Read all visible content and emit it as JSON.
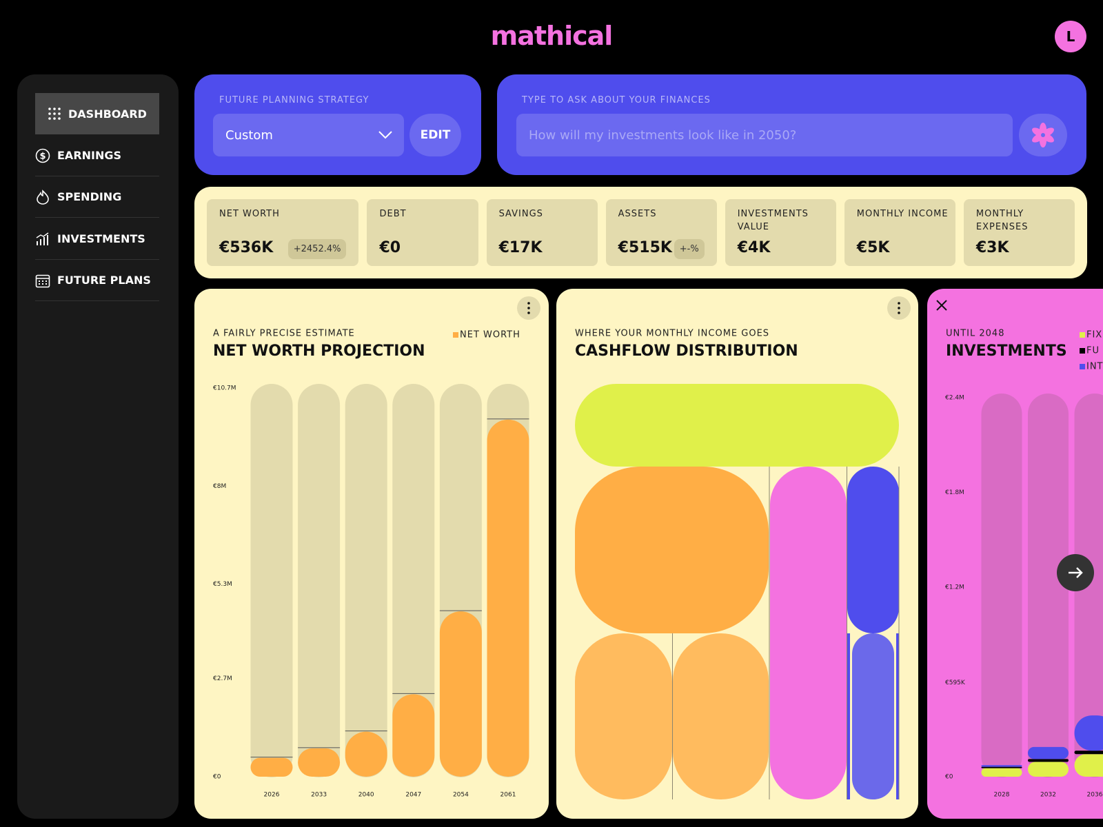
{
  "header": {
    "logo": "mathical",
    "avatar": "L"
  },
  "sidebar": {
    "items": [
      "DASHBOARD",
      "EARNINGS",
      "SPENDING",
      "INVESTMENTS",
      "FUTURE PLANS"
    ]
  },
  "strategy": {
    "label": "FUTURE PLANNING STRATEGY",
    "selected": "Custom",
    "button": "EDIT"
  },
  "ask": {
    "label": "TYPE TO ASK ABOUT YOUR FINANCES",
    "placeholder": "How will my investments look like in 2050?"
  },
  "stats": [
    {
      "label": "NET WORTH",
      "value": "€536K",
      "badge": "+2452.4%"
    },
    {
      "label": "DEBT",
      "value": "€0"
    },
    {
      "label": "SAVINGS",
      "value": "€17K"
    },
    {
      "label": "ASSETS",
      "value": "€515K",
      "badge": "+-%"
    },
    {
      "label": "INVESTMENTS VALUE",
      "value": "€4K"
    },
    {
      "label": "MONTHLY INCOME",
      "value": "€5K"
    },
    {
      "label": "MONTHLY EXPENSES",
      "value": "€3K"
    }
  ],
  "cashflow_card": {
    "subtitle": "WHERE YOUR MONTHLY INCOME GOES",
    "title": "CASHFLOW DISTRIBUTION"
  },
  "chart_data": [
    {
      "type": "bar",
      "subtitle": "A FAIRLY PRECISE ESTIMATE",
      "title": "NET WORTH PROJECTION",
      "categories": [
        "2026",
        "2033",
        "2040",
        "2047",
        "2054",
        "2061"
      ],
      "series": [
        {
          "name": "NET WORTH",
          "color": "#ffae45",
          "values": [
            520000,
            780000,
            1240000,
            2270000,
            4550000,
            9830000
          ]
        }
      ],
      "ylim": [
        0,
        10700000
      ],
      "yticks": [
        {
          "value": 0,
          "label": "€0"
        },
        {
          "value": 2700000,
          "label": "€2.7M"
        },
        {
          "value": 5300000,
          "label": "€5.3M"
        },
        {
          "value": 8000000,
          "label": "€8M"
        },
        {
          "value": 10700000,
          "label": "€10.7M"
        }
      ]
    },
    {
      "type": "stacked_bar",
      "subtitle": "UNTIL 2048",
      "title": "INVESTMENTS",
      "categories": [
        "2028",
        "2032",
        "2036"
      ],
      "series": [
        {
          "name": "FIX",
          "color": "#e0f04a",
          "values": [
            54000,
            94000,
            143000
          ]
        },
        {
          "name": "FU",
          "color": "#000000",
          "values": [
            9000,
            18000,
            22000
          ]
        },
        {
          "name": "INT",
          "color": "#4f4ded",
          "values": [
            10000,
            76000,
            223000
          ]
        }
      ],
      "ylim": [
        0,
        2400000
      ],
      "yticks": [
        {
          "value": 0,
          "label": "€0"
        },
        {
          "value": 595000,
          "label": "€595K"
        },
        {
          "value": 1200000,
          "label": "€1.2M"
        },
        {
          "value": 1800000,
          "label": "€1.8M"
        },
        {
          "value": 2400000,
          "label": "€2.4M"
        }
      ]
    }
  ]
}
